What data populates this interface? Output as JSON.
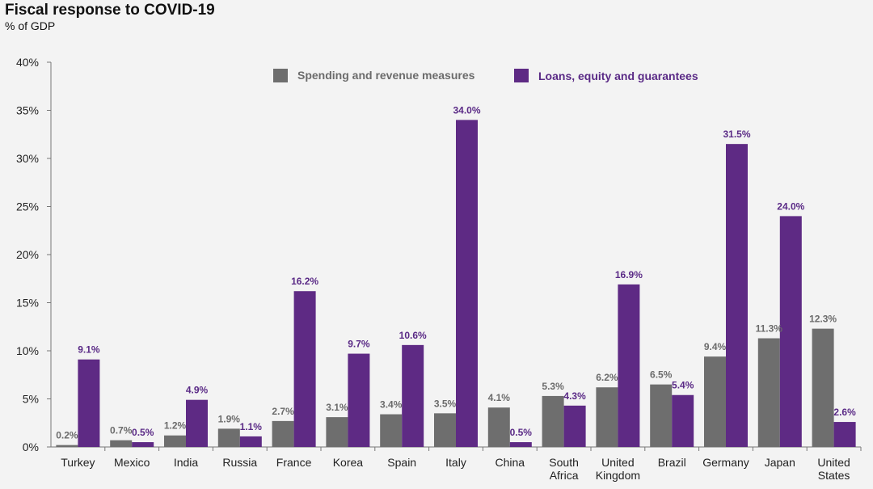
{
  "title": "Fiscal response to COVID-19",
  "subtitle": "% of GDP",
  "colors": {
    "spending": "#6e6e6e",
    "loans": "#5e2a84"
  },
  "chart_data": {
    "type": "bar",
    "title": "Fiscal response to COVID-19",
    "ylabel": "% of GDP",
    "ylim": [
      0,
      40
    ],
    "yticks": [
      "0%",
      "5%",
      "10%",
      "15%",
      "20%",
      "25%",
      "30%",
      "35%",
      "40%"
    ],
    "legend": "top-center",
    "categories": [
      [
        "Turkey"
      ],
      [
        "Mexico"
      ],
      [
        "India"
      ],
      [
        "Russia"
      ],
      [
        "France"
      ],
      [
        "Korea"
      ],
      [
        "Spain"
      ],
      [
        "Italy"
      ],
      [
        "China"
      ],
      [
        "South",
        "Africa"
      ],
      [
        "United",
        "Kingdom"
      ],
      [
        "Brazil"
      ],
      [
        "Germany"
      ],
      [
        "Japan"
      ],
      [
        "United",
        "States"
      ]
    ],
    "series": [
      {
        "name": "Spending and revenue measures",
        "values": [
          0.2,
          0.7,
          1.2,
          1.9,
          2.7,
          3.1,
          3.4,
          3.5,
          4.1,
          5.3,
          6.2,
          6.5,
          9.4,
          11.3,
          12.3
        ],
        "labels": [
          "0.2%",
          "0.7%",
          "1.2%",
          "1.9%",
          "2.7%",
          "3.1%",
          "3.4%",
          "3.5%",
          "4.1%",
          "5.3%",
          "6.2%",
          "6.5%",
          "9.4%",
          "11.3%",
          "12.3%"
        ]
      },
      {
        "name": "Loans, equity and guarantees",
        "values": [
          9.1,
          0.5,
          4.9,
          1.1,
          16.2,
          9.7,
          10.6,
          34.0,
          0.5,
          4.3,
          16.9,
          5.4,
          31.5,
          24.0,
          2.6
        ],
        "labels": [
          "9.1%",
          "0.5%",
          "4.9%",
          "1.1%",
          "16.2%",
          "9.7%",
          "10.6%",
          "34.0%",
          "0.5%",
          "4.3%",
          "16.9%",
          "5.4%",
          "31.5%",
          "24.0%",
          "2.6%"
        ]
      }
    ]
  }
}
